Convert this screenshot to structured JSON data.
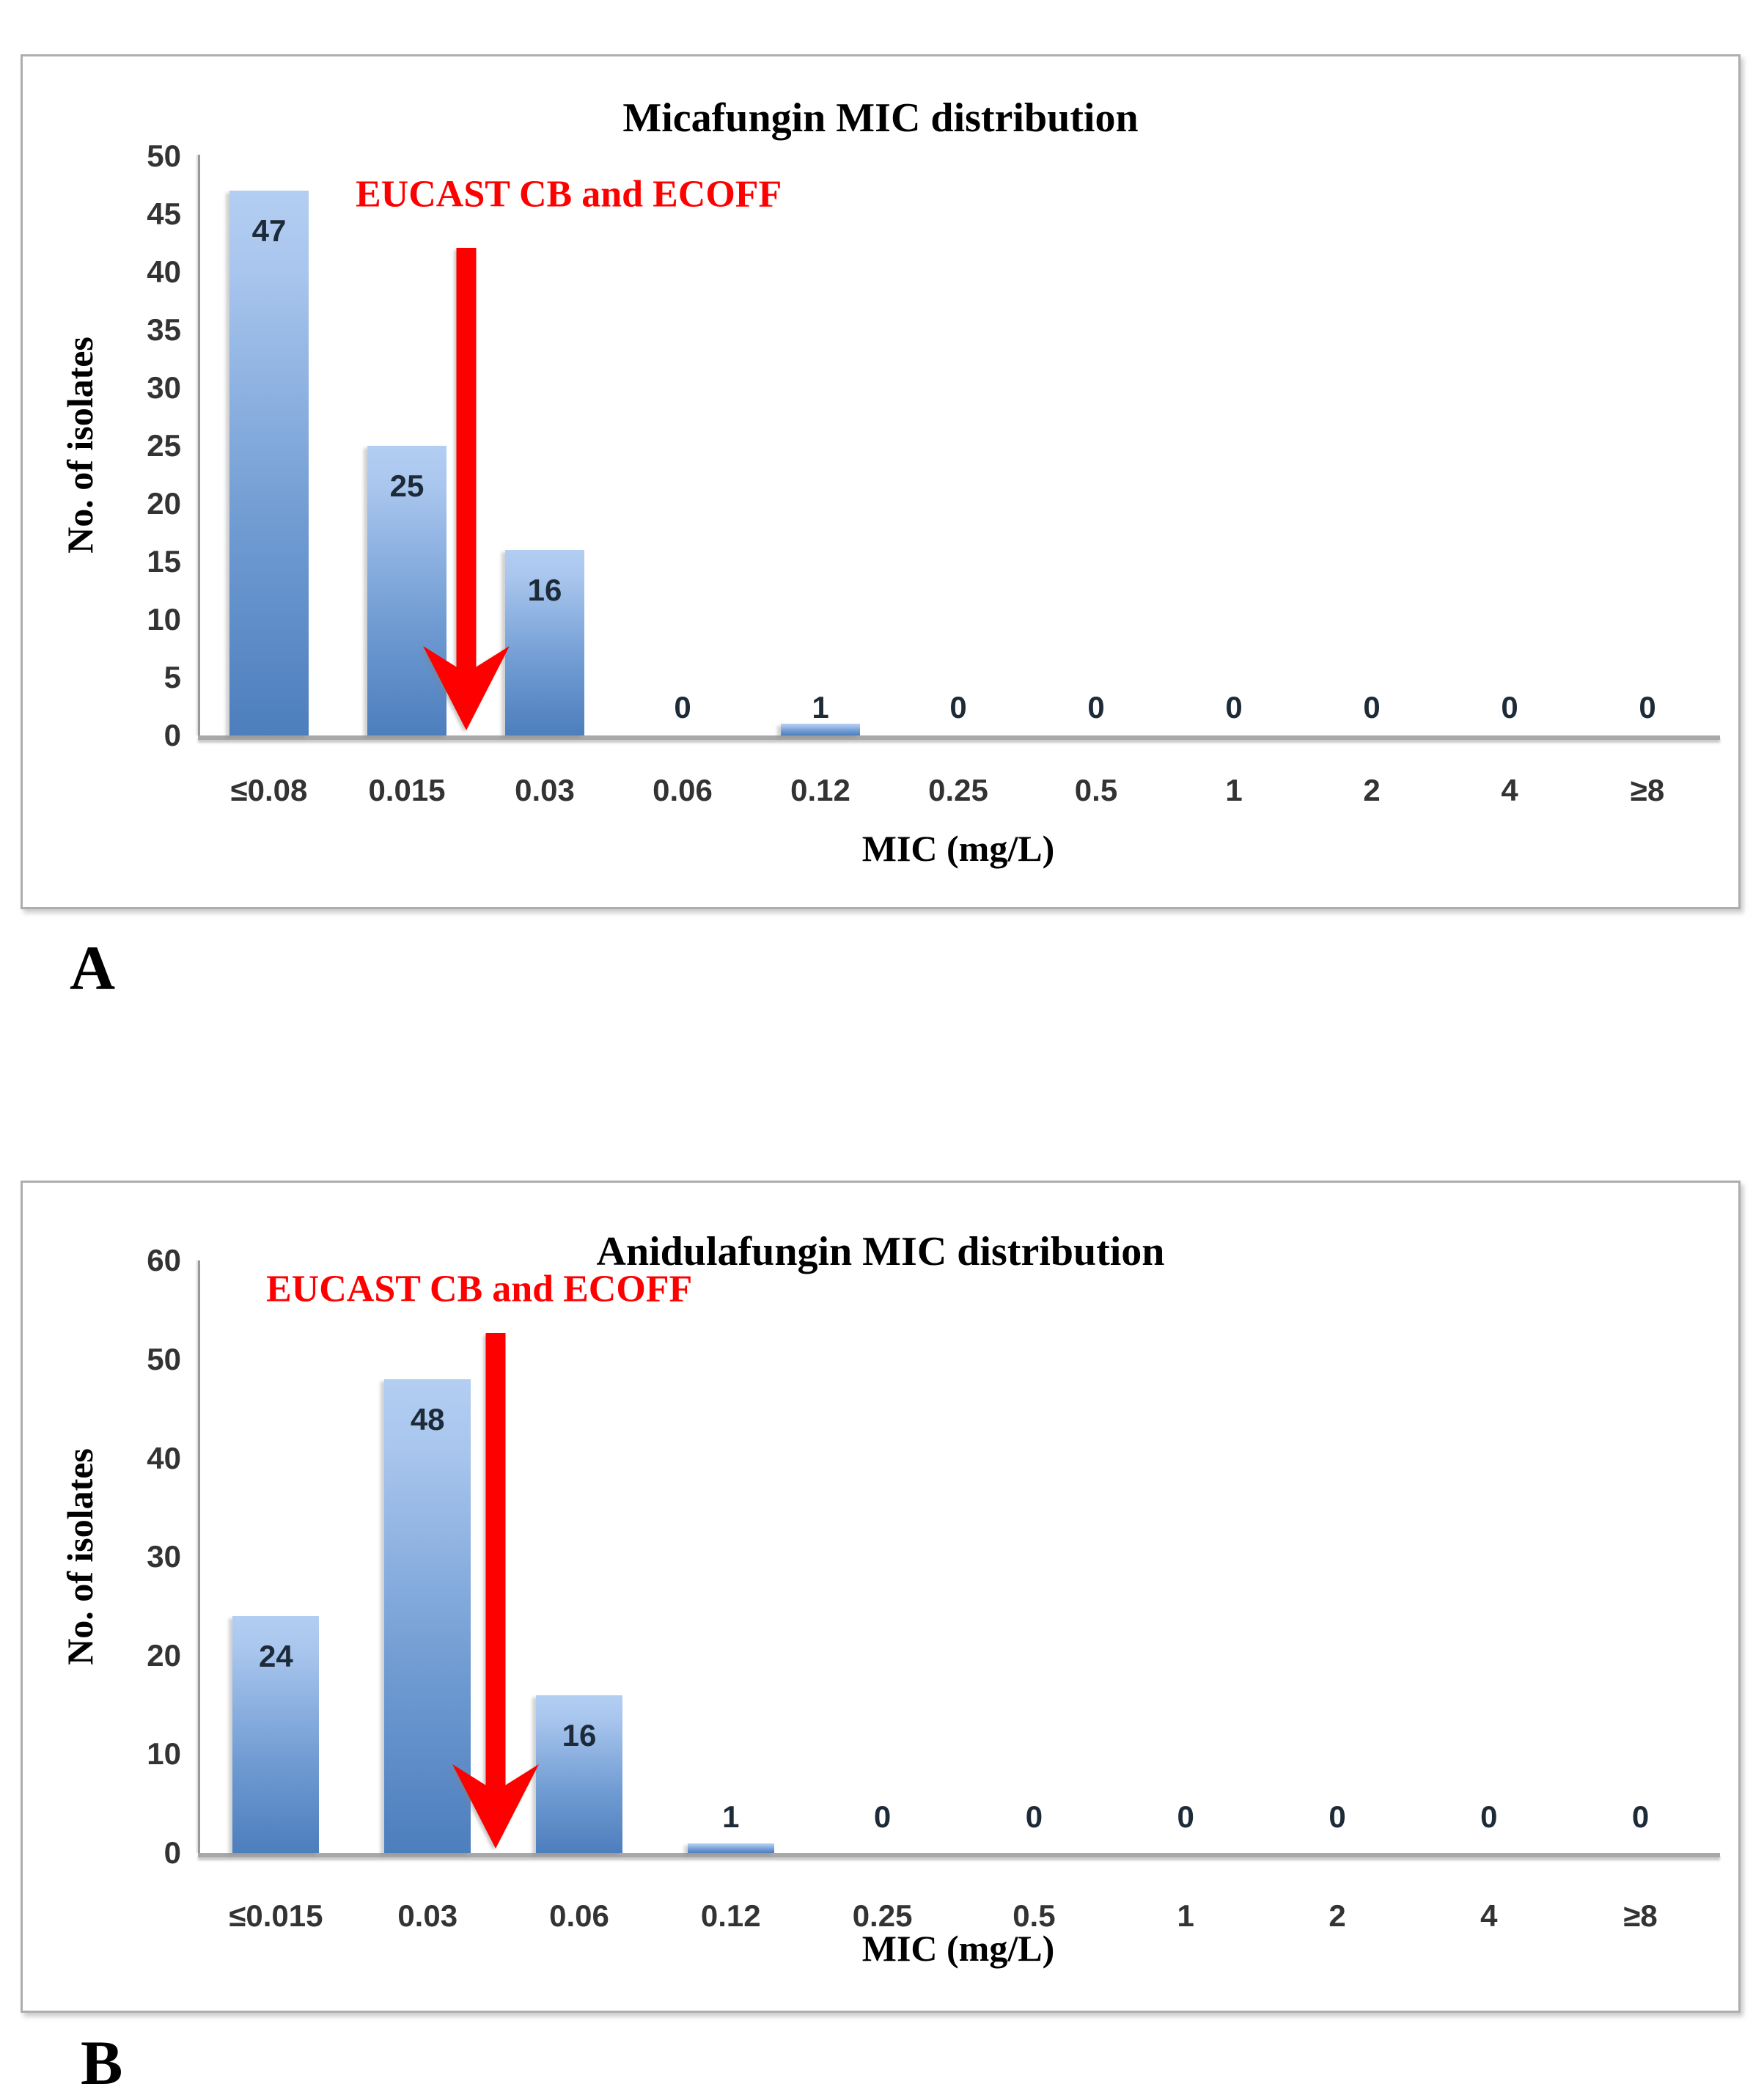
{
  "figure": {
    "panel_labels": [
      "A",
      "B"
    ]
  },
  "chart_data": [
    {
      "type": "bar",
      "title": "Micafungin MIC distribution",
      "xlabel": "MIC (mg/L)",
      "ylabel": "No. of isolates",
      "categories": [
        "≤0.08",
        "0.015",
        "0.03",
        "0.06",
        "0.12",
        "0.25",
        "0.5",
        "1",
        "2",
        "4",
        "≥8"
      ],
      "values": [
        47,
        25,
        16,
        0,
        1,
        0,
        0,
        0,
        0,
        0,
        0
      ],
      "ylim": [
        0,
        50
      ],
      "yticks": [
        0,
        5,
        10,
        15,
        20,
        25,
        30,
        35,
        40,
        45,
        50
      ],
      "grid": "off",
      "legend": "none",
      "annotation": "EUCAST CB and ECOFF",
      "annotation_color": "#ff0000",
      "arrow": {
        "color": "#fe0000",
        "points_between": [
          "0.015",
          "0.03"
        ]
      },
      "bar_color_top": "#a9c6ee",
      "bar_color_bottom": "#4d7ebd"
    },
    {
      "type": "bar",
      "title": "Anidulafungin MIC distribution",
      "xlabel": "MIC (mg/L)",
      "ylabel": "No. of isolates",
      "categories": [
        "≤0.015",
        "0.03",
        "0.06",
        "0.12",
        "0.25",
        "0.5",
        "1",
        "2",
        "4",
        "≥8"
      ],
      "values": [
        24,
        48,
        16,
        1,
        0,
        0,
        0,
        0,
        0,
        0
      ],
      "ylim": [
        0,
        60
      ],
      "yticks": [
        0,
        10,
        20,
        30,
        40,
        50,
        60
      ],
      "grid": "off",
      "legend": "none",
      "annotation": "EUCAST CB and ECOFF",
      "annotation_color": "#ff0000",
      "arrow": {
        "color": "#fe0000",
        "points_between": [
          "0.03",
          "0.06"
        ]
      },
      "bar_color_top": "#a9c6ee",
      "bar_color_bottom": "#4d7ebd"
    }
  ]
}
